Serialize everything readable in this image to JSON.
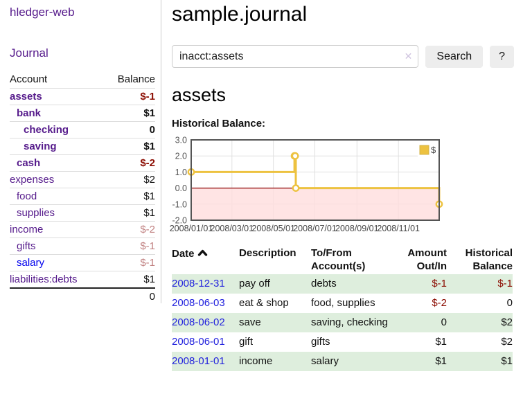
{
  "app": {
    "brand": "hledger-web"
  },
  "sidebar": {
    "nav": {
      "journal_label": "Journal"
    },
    "table": {
      "headers": {
        "account": "Account",
        "balance": "Balance"
      },
      "rows": [
        {
          "account": "assets",
          "balance": "$-1",
          "indent": 0,
          "bold": true,
          "balance_class": "neg-strong"
        },
        {
          "account": "bank",
          "balance": "$1",
          "indent": 1,
          "bold": true
        },
        {
          "account": "checking",
          "balance": "0",
          "indent": 2,
          "bold": true
        },
        {
          "account": "saving",
          "balance": "$1",
          "indent": 2,
          "bold": true
        },
        {
          "account": "cash",
          "balance": "$-2",
          "indent": 1,
          "bold": true,
          "balance_class": "neg-strong"
        },
        {
          "account": "expenses",
          "balance": "$2",
          "indent": 0
        },
        {
          "account": "food",
          "balance": "$1",
          "indent": 1
        },
        {
          "account": "supplies",
          "balance": "$1",
          "indent": 1
        },
        {
          "account": "income",
          "balance": "$-2",
          "indent": 0,
          "balance_class": "neg-soft"
        },
        {
          "account": "gifts",
          "balance": "$-1",
          "indent": 1,
          "balance_class": "neg-soft"
        },
        {
          "account": "salary",
          "balance": "$-1",
          "indent": 1,
          "link_color": "blue",
          "balance_class": "neg-soft"
        },
        {
          "account": "liabilities:debts",
          "balance": "$1",
          "indent": 0
        }
      ],
      "total": "0"
    }
  },
  "main": {
    "title": "sample.journal",
    "search": {
      "value": "inacct:assets",
      "clear_icon": "✕",
      "button_label": "Search",
      "help_label": "?"
    },
    "account_heading": "assets",
    "chart_label": "Historical Balance:",
    "register": {
      "headers": {
        "date": "Date",
        "description": "Description",
        "accounts": "To/From Account(s)",
        "amount": "Amount Out/In",
        "balance": "Historical Balance"
      },
      "sort": {
        "column": "date",
        "direction": "ascending"
      },
      "rows": [
        {
          "date": "2008-12-31",
          "description": "pay off",
          "accounts": "debts",
          "amount": "$-1",
          "amount_negative": true,
          "balance": "$-1",
          "balance_negative": true
        },
        {
          "date": "2008-06-03",
          "description": "eat & shop",
          "accounts": "food, supplies",
          "amount": "$-2",
          "amount_negative": true,
          "balance": "0",
          "balance_negative": false
        },
        {
          "date": "2008-06-02",
          "description": "save",
          "accounts": "saving, checking",
          "amount": "0",
          "amount_negative": false,
          "balance": "$2",
          "balance_negative": false
        },
        {
          "date": "2008-06-01",
          "description": "gift",
          "accounts": "gifts",
          "amount": "$1",
          "amount_negative": false,
          "balance": "$2",
          "balance_negative": false
        },
        {
          "date": "2008-01-01",
          "description": "income",
          "accounts": "salary",
          "amount": "$1",
          "amount_negative": false,
          "balance": "$1",
          "balance_negative": false
        }
      ]
    }
  },
  "chart_data": {
    "type": "line",
    "title": "Historical Balance",
    "series": [
      {
        "name": "$",
        "color": "#edc240",
        "step": true,
        "points": [
          [
            "2008-01-01",
            1
          ],
          [
            "2008-06-01",
            2
          ],
          [
            "2008-06-02",
            2
          ],
          [
            "2008-06-03",
            0
          ],
          [
            "2008-12-31",
            -1
          ]
        ]
      }
    ],
    "x_range": [
      "2008-01-01",
      "2008-12-31"
    ],
    "x_ticks": [
      "2008/01/01",
      "2008/03/01",
      "2008/05/01",
      "2008/07/01",
      "2008/09/01",
      "2008/11/01"
    ],
    "y_ticks": [
      3.0,
      2.0,
      1.0,
      0.0,
      -1.0,
      -2.0
    ],
    "ylim": [
      -2,
      3
    ],
    "grid": true,
    "legend_position": "top-right",
    "negative_region_fill": "#ffdddd",
    "zero_line_color": "#8b0000"
  },
  "colors": {
    "link_purple": "#551a8b",
    "link_blue": "#0000ee",
    "date_link_blue": "#2222dd",
    "negative_strong": "#8b0b00",
    "negative_soft": "#c08080",
    "row_stripe_green": "#deeedd",
    "chart_line_yellow": "#edc240"
  }
}
